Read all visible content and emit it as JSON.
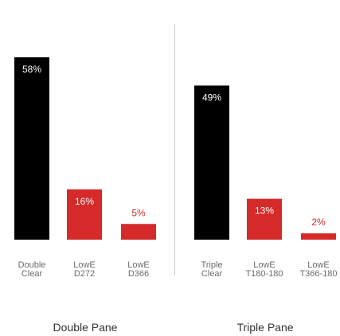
{
  "chart_data": {
    "type": "bar",
    "unit": "%",
    "ylim": [
      0,
      60
    ],
    "grid": false,
    "legend": "none",
    "colors": {
      "baseline": "#000000",
      "lowe": "#d42a2a",
      "lowe_label_outside": "#d42a2a",
      "divider": "#cccccc"
    },
    "groups": [
      {
        "name": "Double Pane",
        "bars": [
          {
            "category": [
              "Double",
              "Clear"
            ],
            "value": 58,
            "label": "58%",
            "color": "#000000"
          },
          {
            "category": [
              "LowE",
              "D272"
            ],
            "value": 16,
            "label": "16%",
            "color": "#d42a2a"
          },
          {
            "category": [
              "LowE",
              "D366"
            ],
            "value": 5,
            "label": "5%",
            "color": "#d42a2a"
          }
        ]
      },
      {
        "name": "Triple Pane",
        "bars": [
          {
            "category": [
              "Triple",
              "Clear"
            ],
            "value": 49,
            "label": "49%",
            "color": "#000000"
          },
          {
            "category": [
              "LowE",
              "T180-180"
            ],
            "value": 13,
            "label": "13%",
            "color": "#d42a2a"
          },
          {
            "category": [
              "LowE",
              "T366-180"
            ],
            "value": 2,
            "label": "2%",
            "color": "#d42a2a"
          }
        ]
      }
    ]
  }
}
